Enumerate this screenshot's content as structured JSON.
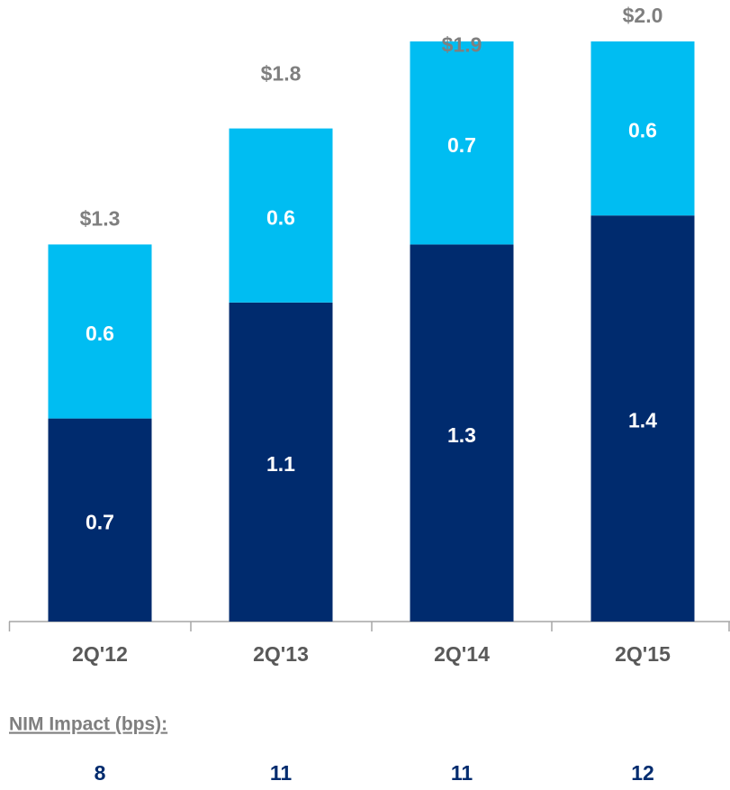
{
  "chart_data": {
    "type": "stacked_bar",
    "categories": [
      "2Q'12",
      "2Q'13",
      "2Q'14",
      "2Q'15"
    ],
    "series": [
      {
        "color": "#002b6e",
        "values": [
          0.7,
          1.1,
          1.3,
          1.4
        ]
      },
      {
        "color": "#00bdf2",
        "values": [
          0.6,
          0.6,
          0.7,
          0.6
        ]
      }
    ],
    "totals": [
      1.3,
      1.8,
      1.9,
      2.0
    ],
    "total_labels": [
      "$1.3",
      "$1.8",
      "$1.9",
      "$2.0"
    ],
    "nim_label": "NIM Impact (bps):",
    "nim_values": [
      8,
      11,
      11,
      12
    ]
  }
}
